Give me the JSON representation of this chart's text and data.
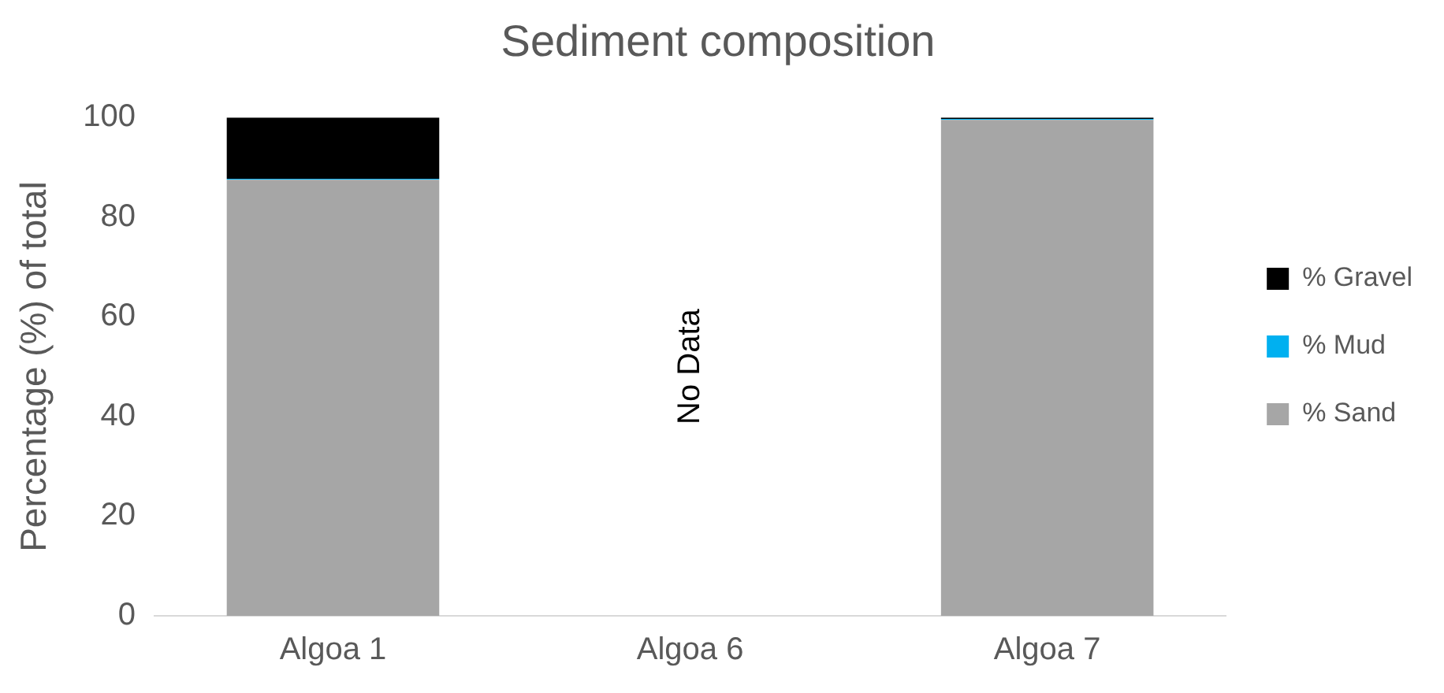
{
  "chart_data": {
    "type": "bar",
    "title": "Sediment composition",
    "ylabel": "Percentage (%) of total",
    "categories": [
      "Algoa 1",
      "Algoa 6",
      "Algoa 7"
    ],
    "stacked": true,
    "series": [
      {
        "name": "% Sand",
        "color": "#a6a6a6",
        "values": [
          87.5,
          null,
          99.5
        ]
      },
      {
        "name": "% Mud",
        "color": "#00b0f0",
        "values": [
          0.2,
          null,
          0.2
        ]
      },
      {
        "name": "% Gravel",
        "color": "#000000",
        "values": [
          12.3,
          null,
          0.3
        ]
      }
    ],
    "ylim": [
      0,
      100
    ],
    "yticks": [
      0,
      20,
      40,
      60,
      80,
      100
    ],
    "grid": false,
    "legend": "right",
    "annotations": [
      "No Data"
    ]
  }
}
